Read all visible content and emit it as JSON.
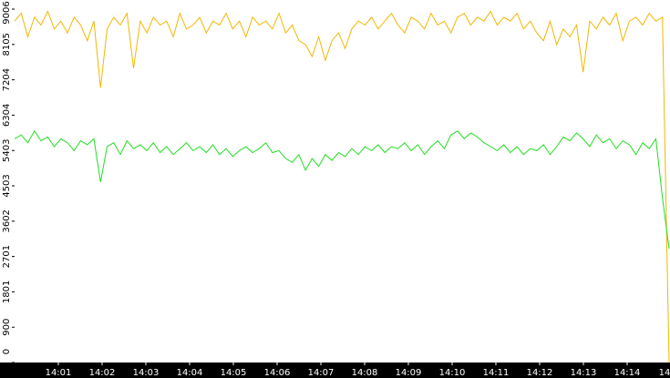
{
  "chart_data": {
    "type": "line",
    "xticks": [
      "14:01",
      "14:02",
      "14:03",
      "14:04",
      "14:05",
      "14:06",
      "14:07",
      "14:08",
      "14:09",
      "14:10",
      "14:11",
      "14:12",
      "14:13",
      "14:14",
      "14"
    ],
    "ylim": [
      0,
      9006
    ],
    "yticks": [
      0,
      900,
      1801,
      2701,
      3602,
      4503,
      5403,
      6304,
      7204,
      8105,
      9006
    ],
    "series": [
      {
        "color": "#f2b700",
        "values": [
          8700,
          8900,
          8300,
          8800,
          8600,
          8950,
          8500,
          8700,
          8400,
          8800,
          8600,
          8200,
          8700,
          7000,
          8500,
          8800,
          8600,
          8900,
          7500,
          8700,
          8400,
          8800,
          8600,
          8700,
          8300,
          8900,
          8500,
          8600,
          8800,
          8400,
          8700,
          8600,
          8900,
          8500,
          8700,
          8300,
          8800,
          8600,
          8700,
          8500,
          8900,
          8400,
          8600,
          8200,
          8100,
          7800,
          8300,
          7700,
          8200,
          8400,
          8000,
          8500,
          8700,
          8600,
          8800,
          8500,
          8700,
          8900,
          8600,
          8400,
          8800,
          8700,
          8500,
          8900,
          8600,
          8700,
          8400,
          8800,
          8900,
          8600,
          8800,
          8700,
          8950,
          8600,
          8800,
          8700,
          8900,
          8500,
          8700,
          8400,
          8200,
          8700,
          8100,
          8500,
          8300,
          8600,
          7400,
          8700,
          8500,
          8800,
          8600,
          8900,
          8200,
          8700,
          8800,
          8600,
          8900,
          8700,
          8800,
          0
        ]
      },
      {
        "color": "#22dd22",
        "values": [
          5700,
          5800,
          5600,
          5900,
          5650,
          5750,
          5500,
          5700,
          5600,
          5400,
          5650,
          5550,
          5700,
          4600,
          5500,
          5600,
          5300,
          5650,
          5450,
          5550,
          5400,
          5600,
          5350,
          5500,
          5300,
          5450,
          5600,
          5400,
          5500,
          5350,
          5550,
          5300,
          5450,
          5250,
          5400,
          5500,
          5350,
          5450,
          5600,
          5350,
          5400,
          5200,
          5100,
          5300,
          4900,
          5200,
          5000,
          5300,
          5150,
          5350,
          5250,
          5450,
          5300,
          5500,
          5400,
          5550,
          5350,
          5500,
          5450,
          5600,
          5400,
          5550,
          5300,
          5500,
          5650,
          5450,
          5800,
          5900,
          5700,
          5850,
          5750,
          5600,
          5500,
          5400,
          5550,
          5350,
          5500,
          5300,
          5450,
          5400,
          5550,
          5300,
          5500,
          5750,
          5650,
          5850,
          5700,
          5500,
          5800,
          5600,
          5700,
          5450,
          5650,
          5550,
          5300,
          5600,
          5450,
          5700,
          4200,
          2900
        ]
      }
    ]
  }
}
